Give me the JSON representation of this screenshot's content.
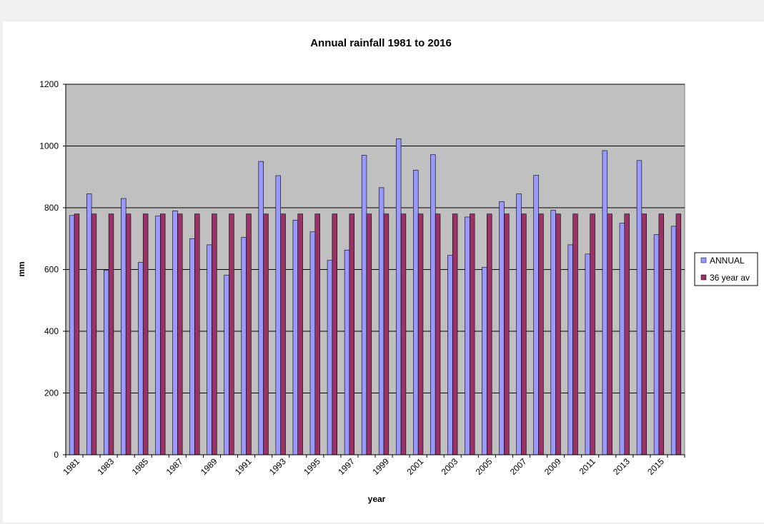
{
  "chart_data": {
    "type": "bar",
    "title": "Annual rainfall 1981 to 2016",
    "xlabel": "year",
    "ylabel": "mm",
    "ylim": [
      0,
      1200
    ],
    "yticks": [
      0,
      200,
      400,
      600,
      800,
      1000,
      1200
    ],
    "grid": true,
    "legend_position": "right",
    "categories": [
      "1981",
      "1982",
      "1983",
      "1984",
      "1985",
      "1986",
      "1987",
      "1988",
      "1989",
      "1990",
      "1991",
      "1992",
      "1993",
      "1994",
      "1995",
      "1996",
      "1997",
      "1998",
      "1999",
      "2000",
      "2001",
      "2002",
      "2003",
      "2004",
      "2005",
      "2006",
      "2007",
      "2008",
      "2009",
      "2010",
      "2011",
      "2012",
      "2013",
      "2014",
      "2015",
      "2016"
    ],
    "xtick_labels": [
      "1981",
      "1983",
      "1985",
      "1987",
      "1989",
      "1991",
      "1993",
      "1995",
      "1997",
      "1999",
      "2001",
      "2003",
      "2005",
      "2007",
      "2009",
      "2011",
      "2013",
      "2015"
    ],
    "series": [
      {
        "name": "ANNUAL",
        "color": "#9999ff",
        "values": [
          775,
          845,
          598,
          830,
          623,
          773,
          790,
          700,
          680,
          582,
          704,
          950,
          904,
          760,
          722,
          630,
          663,
          970,
          865,
          1023,
          922,
          972,
          646,
          770,
          607,
          820,
          845,
          905,
          792,
          680,
          650,
          985,
          750,
          953,
          713,
          740
        ]
      },
      {
        "name": "36 year av",
        "color": "#993366",
        "values": [
          780,
          780,
          780,
          780,
          780,
          780,
          780,
          780,
          780,
          780,
          780,
          780,
          780,
          780,
          780,
          780,
          780,
          780,
          780,
          780,
          780,
          780,
          780,
          780,
          780,
          780,
          780,
          780,
          780,
          780,
          780,
          780,
          780,
          780,
          780,
          780
        ]
      }
    ],
    "plot_background": "#c0c0c0"
  }
}
